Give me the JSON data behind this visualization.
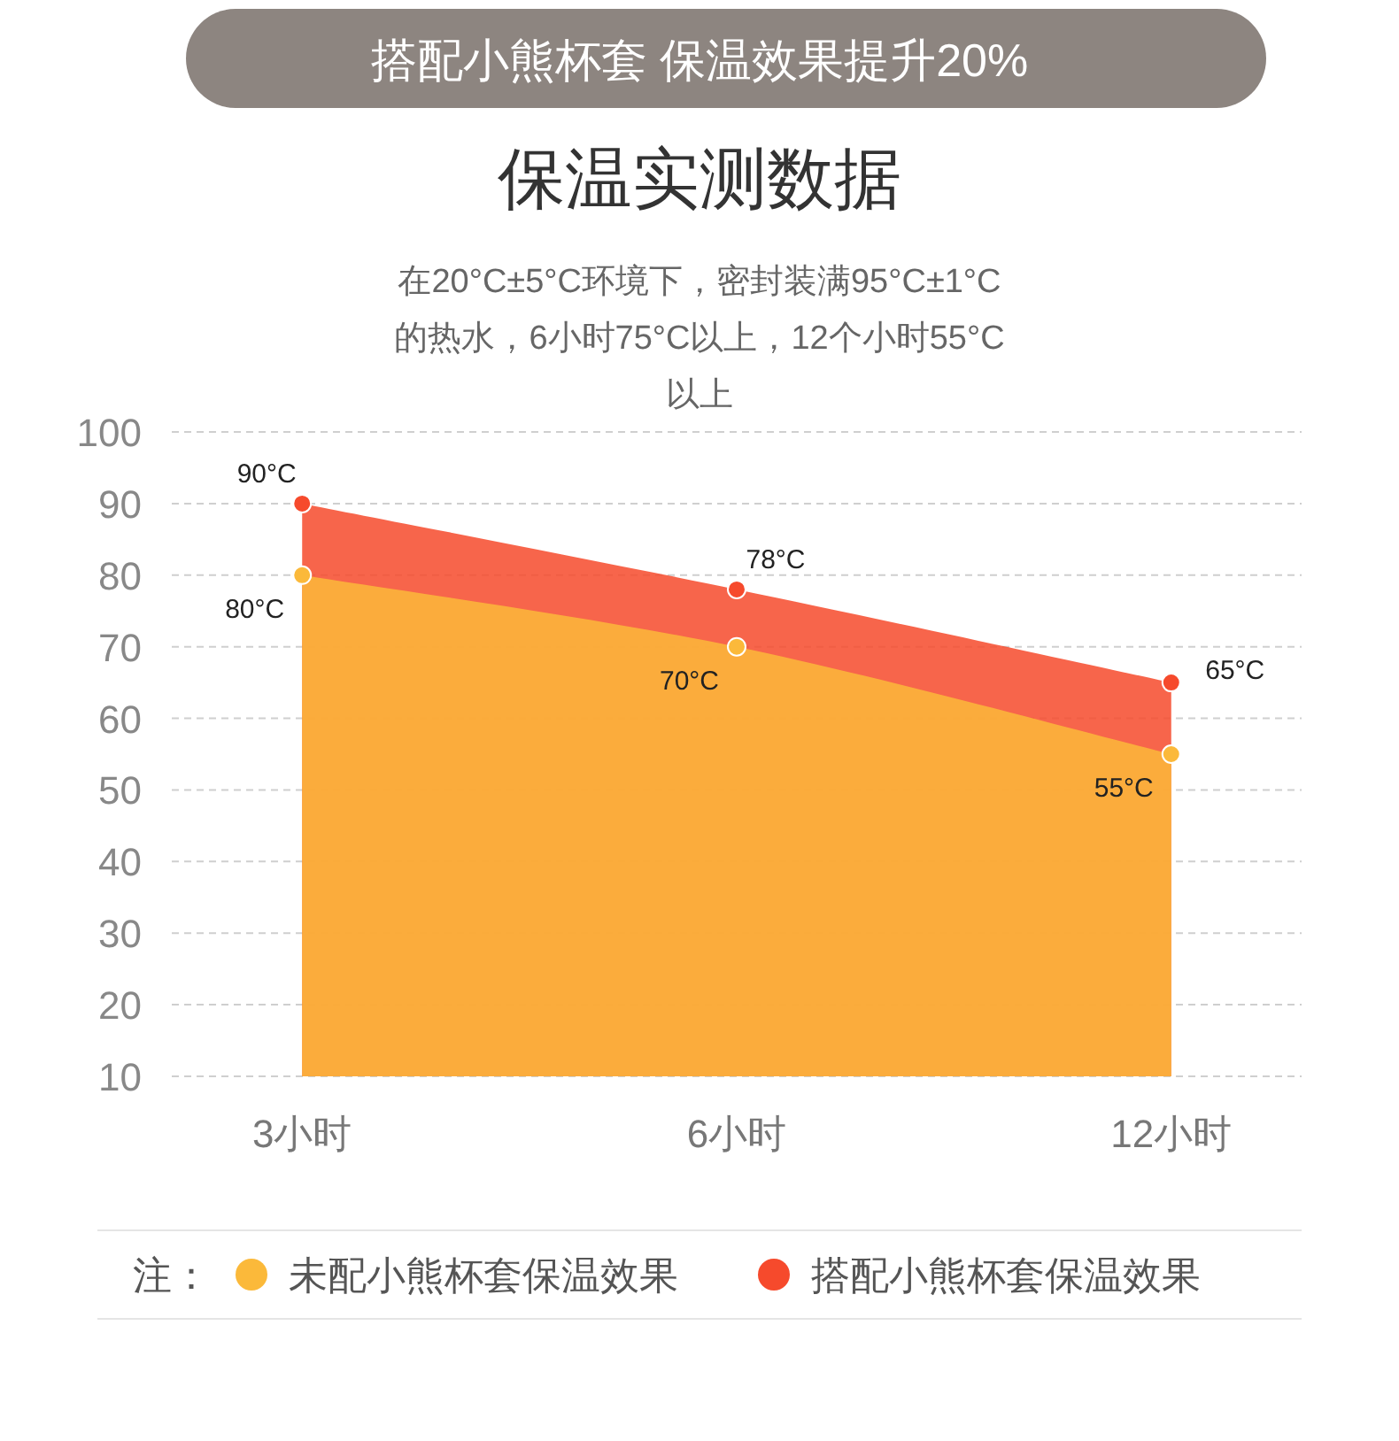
{
  "chart_data": {
    "type": "area",
    "title": "保温实测数据",
    "subtitle": "在20°C±5°C环境下，密封装满95°C±1°C的热水，6小时75°C以上，12个小时55°C以上",
    "annotations": [
      "搭配小熊杯套 保温效果提升20%"
    ],
    "legend_title": "注：",
    "legend": "bottom",
    "grid": "y",
    "marker": "circle",
    "categories": [
      "3小时",
      "6小时",
      "12小时"
    ],
    "ylim": [
      10,
      100
    ],
    "yticks": [
      10,
      20,
      30,
      40,
      50,
      60,
      70,
      80,
      90,
      100
    ],
    "series": [
      {
        "name": "搭配小熊杯套保温效果",
        "color": "#f64a2c",
        "values": [
          90,
          78,
          65
        ],
        "value_labels": [
          "90°C",
          "78°C",
          "65°C"
        ]
      },
      {
        "name": "未配小熊杯套保温效果",
        "color": "#fbb93a",
        "values": [
          80,
          70,
          55
        ],
        "value_labels": [
          "80°C",
          "70°C",
          "55°C"
        ]
      }
    ]
  }
}
